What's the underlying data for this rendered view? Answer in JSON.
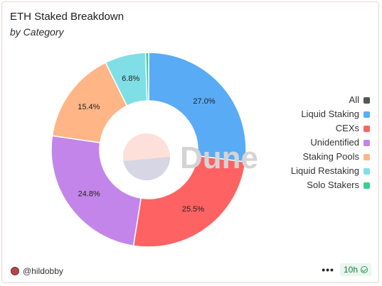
{
  "header": {
    "title": "ETH Staked Breakdown",
    "subtitle": "by Category"
  },
  "chart_data": {
    "type": "pie",
    "donut": true,
    "categories": [
      "Liquid Staking",
      "CEXs",
      "Unidentified",
      "Staking Pools",
      "Liquid Restaking",
      "Solo Stakers"
    ],
    "values": [
      27.0,
      25.5,
      24.8,
      15.4,
      6.8,
      0.5
    ],
    "labels": [
      "27.0%",
      "25.5%",
      "24.8%",
      "15.4%",
      "6.8%",
      ""
    ],
    "colors": [
      "#5aabf5",
      "#ff6262",
      "#c385ea",
      "#ffb585",
      "#80dfe6",
      "#3ccf8e"
    ],
    "legend_position": "right",
    "watermark": "Dune"
  },
  "legend": {
    "all_label": "All",
    "all_color": "#555555"
  },
  "footer": {
    "author": "@hildobby",
    "more_label": "•••",
    "refresh_label": "10h"
  }
}
